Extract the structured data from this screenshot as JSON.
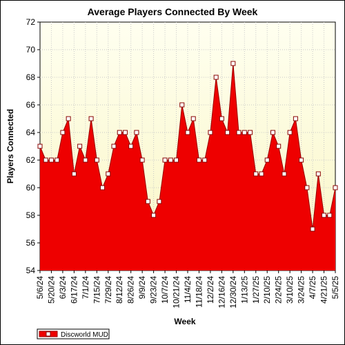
{
  "chart_data": {
    "type": "area",
    "title": "Average Players Connected By Week",
    "xlabel": "Week",
    "ylabel": "Players Connected",
    "ylim": [
      54,
      72
    ],
    "ytick_step": 2,
    "grid": true,
    "legend_position": "bottom-left",
    "colors": {
      "fill": "#ee0000",
      "line": "#990000",
      "marker_fill": "#ffffff",
      "marker_edge": "#880000",
      "plot_bg_top": "#fffff0",
      "plot_bg_bottom": "#f9f6c4"
    },
    "x_tick_labels": [
      "5/6/24",
      "5/20/24",
      "6/3/24",
      "6/17/24",
      "7/1/24",
      "7/15/24",
      "7/29/24",
      "8/12/24",
      "8/26/24",
      "9/9/24",
      "9/23/24",
      "10/7/24",
      "10/21/24",
      "11/4/24",
      "11/18/24",
      "12/2/24",
      "12/16/24",
      "12/30/24",
      "1/13/25",
      "1/27/25",
      "2/10/25",
      "2/24/25",
      "3/10/25",
      "3/24/25",
      "4/7/25",
      "4/21/25",
      "5/5/25"
    ],
    "series": [
      {
        "name": "Discworld MUD",
        "values": [
          63,
          62,
          62,
          62,
          64,
          65,
          61,
          63,
          62,
          65,
          62,
          60,
          61,
          63,
          64,
          64,
          63,
          64,
          62,
          59,
          58,
          59,
          62,
          62,
          62,
          66,
          64,
          65,
          62,
          62,
          64,
          68,
          65,
          64,
          69,
          64,
          64,
          64,
          61,
          61,
          62,
          64,
          63,
          61,
          64,
          65,
          62,
          60,
          57,
          61,
          58,
          58,
          60
        ]
      }
    ]
  }
}
